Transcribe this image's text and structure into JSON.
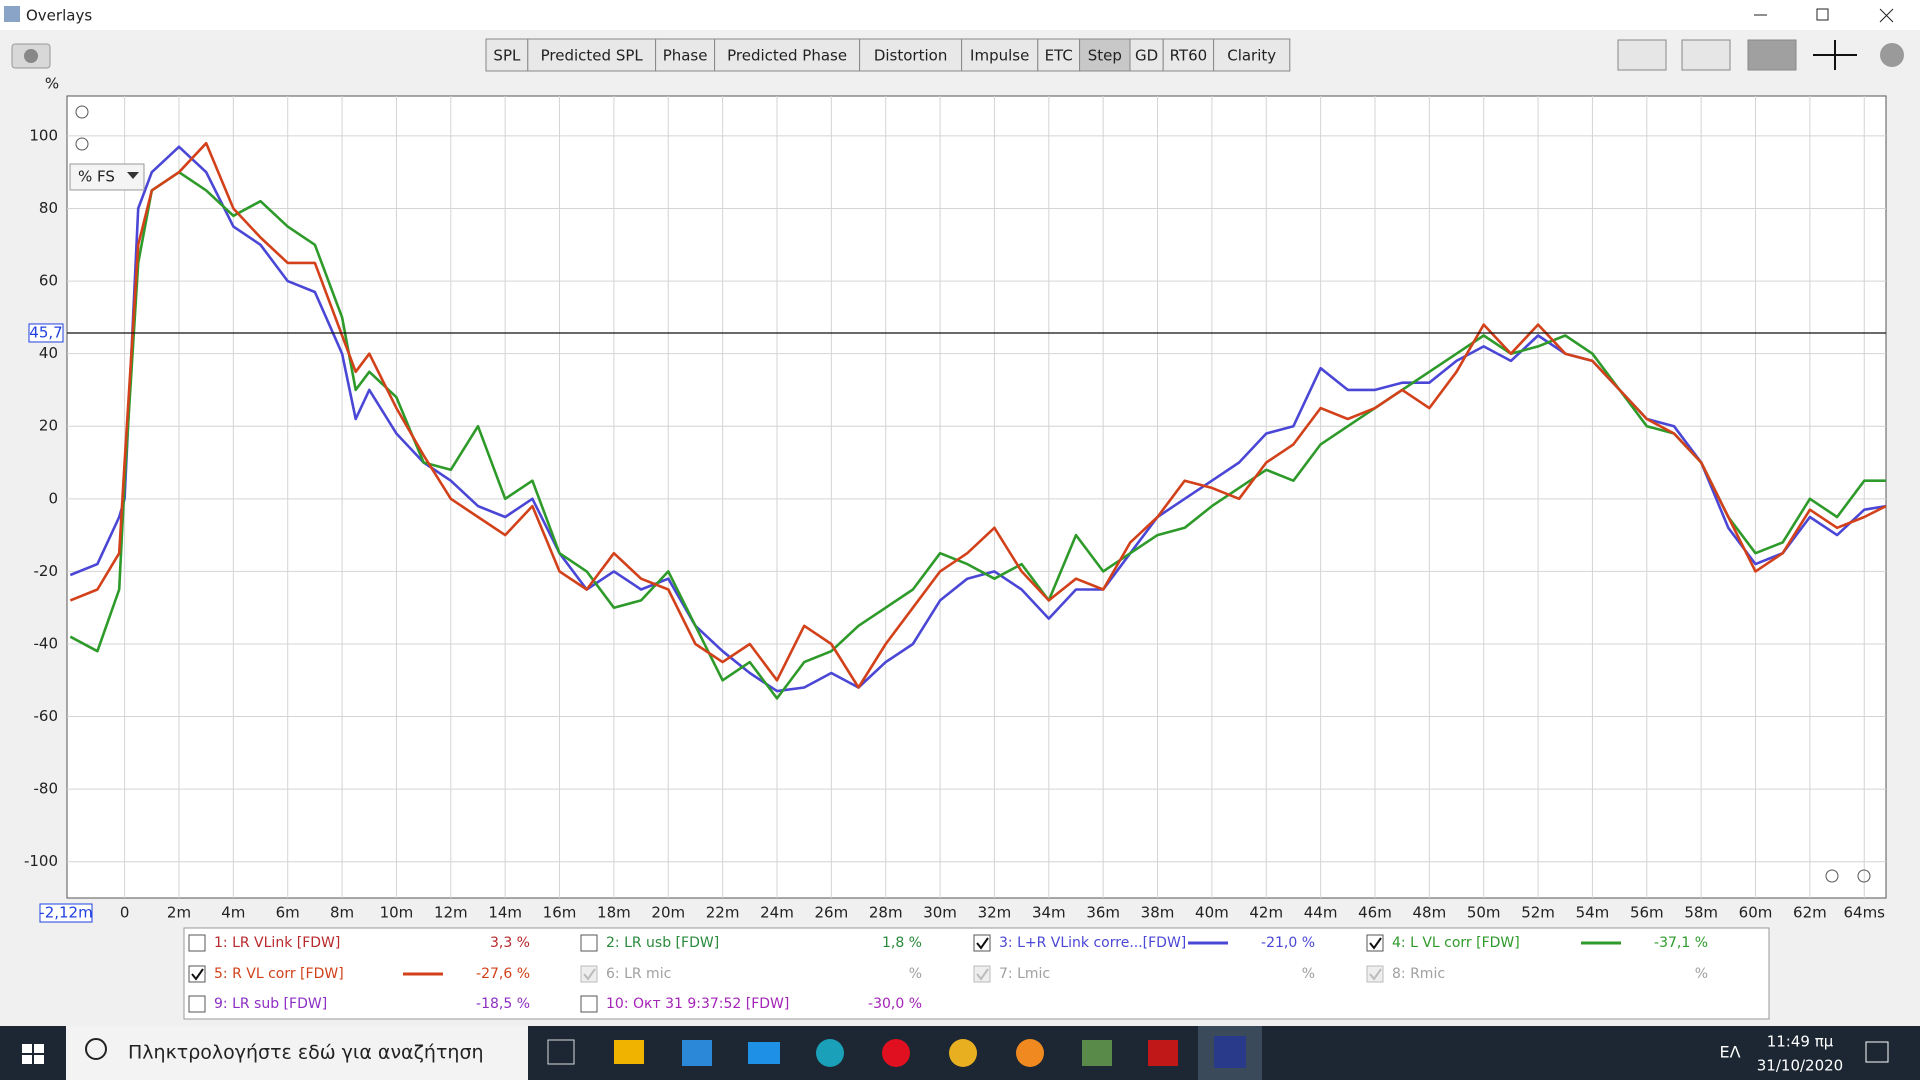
{
  "window": {
    "title": "Overlays"
  },
  "tabs": [
    {
      "label": "SPL"
    },
    {
      "label": "Predicted SPL"
    },
    {
      "label": "Phase"
    },
    {
      "label": "Predicted Phase"
    },
    {
      "label": "Distortion"
    },
    {
      "label": "Impulse"
    },
    {
      "label": "ETC"
    },
    {
      "label": "Step",
      "selected": true
    },
    {
      "label": "GD"
    },
    {
      "label": "RT60"
    },
    {
      "label": "Clarity"
    }
  ],
  "chart_data": {
    "type": "line",
    "y_unit": "%",
    "y_mode": "% FS",
    "x_start_label": "-2,12m",
    "cursor": {
      "value": 45.7,
      "label": "45,7"
    },
    "grid": true,
    "xlim": [
      -2.12,
      64.8
    ],
    "ylim": [
      -110,
      111
    ],
    "xticks": [
      0,
      {
        "value": 2,
        "label": "2m"
      },
      {
        "value": 4,
        "label": "4m"
      },
      {
        "value": 6,
        "label": "6m"
      },
      {
        "value": 8,
        "label": "8m"
      },
      {
        "value": 10,
        "label": "10m"
      },
      {
        "value": 12,
        "label": "12m"
      },
      {
        "value": 14,
        "label": "14m"
      },
      {
        "value": 16,
        "label": "16m"
      },
      {
        "value": 18,
        "label": "18m"
      },
      {
        "value": 20,
        "label": "20m"
      },
      {
        "value": 22,
        "label": "22m"
      },
      {
        "value": 24,
        "label": "24m"
      },
      {
        "value": 26,
        "label": "26m"
      },
      {
        "value": 28,
        "label": "28m"
      },
      {
        "value": 30,
        "label": "30m"
      },
      {
        "value": 32,
        "label": "32m"
      },
      {
        "value": 34,
        "label": "34m"
      },
      {
        "value": 36,
        "label": "36m"
      },
      {
        "value": 38,
        "label": "38m"
      },
      {
        "value": 40,
        "label": "40m"
      },
      {
        "value": 42,
        "label": "42m"
      },
      {
        "value": 44,
        "label": "44m"
      },
      {
        "value": 46,
        "label": "46m"
      },
      {
        "value": 48,
        "label": "48m"
      },
      {
        "value": 50,
        "label": "50m"
      },
      {
        "value": 52,
        "label": "52m"
      },
      {
        "value": 54,
        "label": "54m"
      },
      {
        "value": 56,
        "label": "56m"
      },
      {
        "value": 58,
        "label": "58m"
      },
      {
        "value": 60,
        "label": "60m"
      },
      {
        "value": 62,
        "label": "62m"
      },
      {
        "value": 64,
        "label": "64ms"
      }
    ],
    "yticks": [
      100,
      80,
      60,
      40,
      20,
      0,
      -20,
      -40,
      -60,
      -80,
      -100
    ],
    "x": [
      -2,
      -1,
      -0.2,
      0,
      0.5,
      1,
      2,
      3,
      4,
      5,
      6,
      7,
      8,
      8.5,
      9,
      10,
      11,
      12,
      13,
      14,
      15,
      16,
      17,
      18,
      19,
      20,
      21,
      22,
      23,
      24,
      25,
      26,
      27,
      28,
      29,
      30,
      31,
      32,
      33,
      34,
      35,
      36,
      37,
      38,
      39,
      40,
      41,
      42,
      43,
      44,
      45,
      46,
      47,
      48,
      49,
      50,
      51,
      52,
      53,
      54,
      55,
      56,
      57,
      58,
      59,
      60,
      61,
      62,
      63,
      64,
      64.8
    ],
    "series": [
      {
        "name": "1: LR VLink [FDW]",
        "reading": "3,3 %",
        "checked": false,
        "color": "#b8282c"
      },
      {
        "name": "2: LR usb [FDW]",
        "reading": "1,8 %",
        "checked": false,
        "color": "#2a8a3c"
      },
      {
        "name": "3: L+R VLink corre...[FDW]",
        "reading": "-21,0 %",
        "checked": true,
        "color": "#4b47d6",
        "values": [
          -21,
          -18,
          -5,
          0,
          80,
          90,
          97,
          90,
          75,
          70,
          60,
          57,
          40,
          22,
          30,
          18,
          10,
          5,
          -2,
          -5,
          0,
          -15,
          -25,
          -20,
          -25,
          -22,
          -35,
          -42,
          -48,
          -53,
          -52,
          -48,
          -52,
          -45,
          -40,
          -28,
          -22,
          -20,
          -25,
          -33,
          -25,
          -25,
          -15,
          -5,
          0,
          5,
          10,
          18,
          20,
          36,
          30,
          30,
          32,
          32,
          38,
          42,
          38,
          45,
          40,
          38,
          30,
          22,
          20,
          10,
          -8,
          -18,
          -15,
          -5,
          -10,
          -3,
          -2
        ]
      },
      {
        "name": "4: L VL corr [FDW]",
        "reading": "-37,1 %",
        "checked": true,
        "color": "#2e9a2a",
        "values": [
          -38,
          -42,
          -25,
          5,
          65,
          85,
          90,
          85,
          78,
          82,
          75,
          70,
          50,
          30,
          35,
          28,
          10,
          8,
          20,
          0,
          5,
          -15,
          -20,
          -30,
          -28,
          -20,
          -35,
          -50,
          -45,
          -55,
          -45,
          -42,
          -35,
          -30,
          -25,
          -15,
          -18,
          -22,
          -18,
          -28,
          -10,
          -20,
          -15,
          -10,
          -8,
          -2,
          3,
          8,
          5,
          15,
          20,
          25,
          30,
          35,
          40,
          45,
          40,
          42,
          45,
          40,
          30,
          20,
          18,
          10,
          -5,
          -15,
          -12,
          0,
          -5,
          5,
          5
        ]
      },
      {
        "name": "5: R VL corr [FDW]",
        "reading": "-27,6 %",
        "checked": true,
        "color": "#d2411a",
        "values": [
          -28,
          -25,
          -15,
          10,
          70,
          85,
          90,
          98,
          80,
          72,
          65,
          65,
          45,
          35,
          40,
          25,
          12,
          0,
          -5,
          -10,
          -2,
          -20,
          -25,
          -15,
          -22,
          -25,
          -40,
          -45,
          -40,
          -50,
          -35,
          -40,
          -52,
          -40,
          -30,
          -20,
          -15,
          -8,
          -20,
          -28,
          -22,
          -25,
          -12,
          -5,
          5,
          3,
          0,
          10,
          15,
          25,
          22,
          25,
          30,
          25,
          35,
          48,
          40,
          48,
          40,
          38,
          30,
          22,
          18,
          10,
          -5,
          -20,
          -15,
          -3,
          -8,
          -5,
          -2
        ]
      },
      {
        "name": "6: LR mic",
        "reading": "%",
        "checked": true,
        "enabled": false,
        "color": "#a0a0a0"
      },
      {
        "name": "7: Lmic",
        "reading": "%",
        "checked": true,
        "enabled": false,
        "color": "#a0a0a0"
      },
      {
        "name": "8: Rmic",
        "reading": "%",
        "checked": true,
        "enabled": false,
        "color": "#a0a0a0"
      },
      {
        "name": "9: LR sub [FDW]",
        "reading": "-18,5 %",
        "checked": false,
        "color": "#8e2fc4"
      },
      {
        "name": "10: Окт 31 9:37:52 [FDW]",
        "reading": "-30,0 %",
        "checked": false,
        "color": "#a424b8"
      }
    ]
  },
  "taskbar": {
    "search": "Πληκτρολογήστε εδώ για αναζήτηση",
    "language": "ΕΛ",
    "time": "11:49 πμ",
    "date": "31/10/2020"
  }
}
